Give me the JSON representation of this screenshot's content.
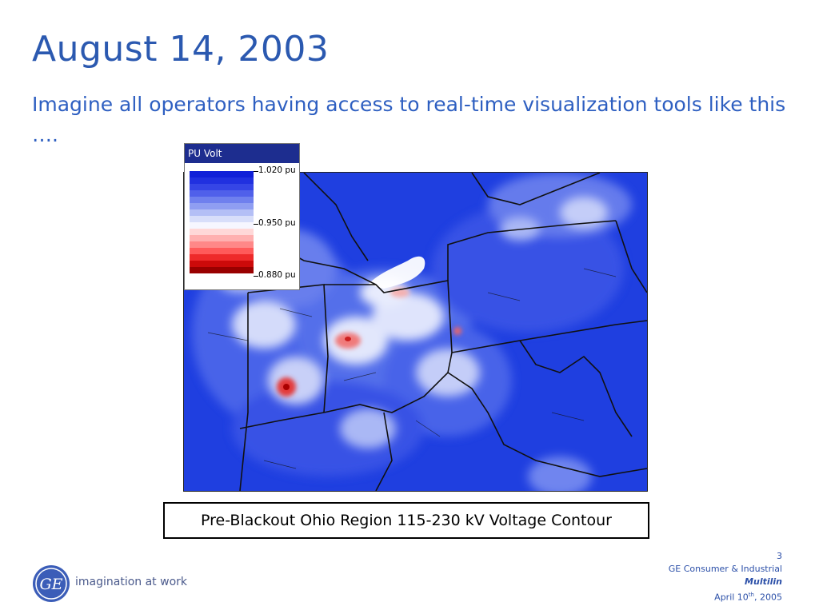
{
  "slide": {
    "title": "August 14, 2003",
    "subtitle": "Imagine all operators having access to real-time visualization tools like this ….",
    "caption": "Pre-Blackout Ohio Region 115-230 kV Voltage Contour"
  },
  "legend": {
    "title": "PU Volt",
    "labels": [
      "1.020 pu",
      "0.950 pu",
      "0.880 pu"
    ],
    "colors": [
      "#1020d8",
      "#2030e0",
      "#3545e6",
      "#5060ea",
      "#6f80ee",
      "#8f9ef2",
      "#b4bff6",
      "#d8defa",
      "#f6f6ff",
      "#ffd8d8",
      "#ffb0b0",
      "#ff8888",
      "#ff5a5a",
      "#ee2a2a",
      "#cc0a0a",
      "#990000"
    ]
  },
  "footer": {
    "page_number": "3",
    "division": "GE Consumer & Industrial",
    "brand": "Multilin",
    "date_prefix": "April 10",
    "date_sup": "th",
    "date_suffix": ", 2005",
    "tagline": "imagination at work",
    "logo_text": "GE"
  },
  "colors": {
    "title": "#2b59b0",
    "accent_blue": "#1f3fe0",
    "footer": "#2b4fa8"
  }
}
